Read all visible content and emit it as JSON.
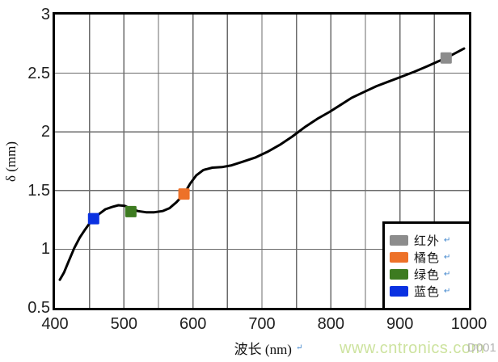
{
  "watermark": "www.cntronics.com",
  "figure_code": "D001",
  "marks": {
    "paragraph": "↵"
  },
  "colors": {
    "frame": "#000000",
    "gridline": "#6b6b6b",
    "curve": "#000000",
    "watermark": "#cde39f",
    "paragraph_mark": "#3f85cc"
  },
  "chart_data": {
    "type": "line",
    "title": "",
    "xlabel": "波长 (nm)",
    "ylabel": "δ (mm)",
    "xlim": [
      400,
      1000
    ],
    "ylim": [
      0.5,
      3
    ],
    "grid_step_x": 50,
    "grid_step_y": 0.5,
    "grid_on": true,
    "x_ticks": [
      {
        "v": 400,
        "label": "400"
      },
      {
        "v": 500,
        "label": "500"
      },
      {
        "v": 600,
        "label": "600"
      },
      {
        "v": 700,
        "label": "700"
      },
      {
        "v": 800,
        "label": "800"
      },
      {
        "v": 900,
        "label": "900"
      },
      {
        "v": 1000,
        "label": "1000"
      }
    ],
    "y_ticks": [
      {
        "v": 3,
        "label": "3"
      },
      {
        "v": 2.5,
        "label": "2.5"
      },
      {
        "v": 2,
        "label": "2"
      },
      {
        "v": 1.5,
        "label": "1.5"
      },
      {
        "v": 1,
        "label": "1"
      },
      {
        "v": 0.5,
        "label": "0.5"
      }
    ],
    "series": [
      {
        "name": "dispersion-curve",
        "color": "#000000",
        "points": [
          [
            407,
            0.74
          ],
          [
            413,
            0.8
          ],
          [
            420,
            0.9
          ],
          [
            428,
            1.01
          ],
          [
            436,
            1.1
          ],
          [
            444,
            1.17
          ],
          [
            450,
            1.22
          ],
          [
            456,
            1.26
          ],
          [
            464,
            1.3
          ],
          [
            473,
            1.34
          ],
          [
            483,
            1.36
          ],
          [
            492,
            1.375
          ],
          [
            501,
            1.37
          ],
          [
            510,
            1.345
          ],
          [
            520,
            1.325
          ],
          [
            532,
            1.315
          ],
          [
            544,
            1.315
          ],
          [
            556,
            1.325
          ],
          [
            566,
            1.35
          ],
          [
            576,
            1.4
          ],
          [
            587,
            1.47
          ],
          [
            596,
            1.56
          ],
          [
            605,
            1.63
          ],
          [
            615,
            1.675
          ],
          [
            628,
            1.695
          ],
          [
            642,
            1.7
          ],
          [
            656,
            1.715
          ],
          [
            672,
            1.745
          ],
          [
            690,
            1.78
          ],
          [
            708,
            1.83
          ],
          [
            726,
            1.89
          ],
          [
            744,
            1.96
          ],
          [
            762,
            2.04
          ],
          [
            780,
            2.11
          ],
          [
            798,
            2.17
          ],
          [
            814,
            2.23
          ],
          [
            830,
            2.29
          ],
          [
            848,
            2.34
          ],
          [
            866,
            2.39
          ],
          [
            884,
            2.43
          ],
          [
            902,
            2.47
          ],
          [
            920,
            2.51
          ],
          [
            940,
            2.56
          ],
          [
            955,
            2.6
          ],
          [
            967,
            2.63
          ],
          [
            980,
            2.67
          ],
          [
            993,
            2.71
          ]
        ]
      }
    ],
    "markers": [
      {
        "id": "blue",
        "label": "蓝色",
        "x": 456,
        "y": 1.26,
        "color": "#0a31e1",
        "size": 14
      },
      {
        "id": "green",
        "label": "绿色",
        "x": 510,
        "y": 1.32,
        "color": "#3d7b20",
        "size": 14
      },
      {
        "id": "orange",
        "label": "橘色",
        "x": 587,
        "y": 1.47,
        "color": "#ed7128",
        "size": 14
      },
      {
        "id": "infrared",
        "label": "红外",
        "x": 967,
        "y": 2.63,
        "color": "#8c8c8c",
        "size": 14
      }
    ],
    "legend": {
      "position": "bottom-right",
      "items": [
        {
          "id": "infrared",
          "label": "红外",
          "color": "#8c8c8c"
        },
        {
          "id": "orange",
          "label": "橘色",
          "color": "#ed7128"
        },
        {
          "id": "green",
          "label": "绿色",
          "color": "#3d7b20"
        },
        {
          "id": "blue",
          "label": "蓝色",
          "color": "#0a31e1"
        }
      ]
    }
  }
}
